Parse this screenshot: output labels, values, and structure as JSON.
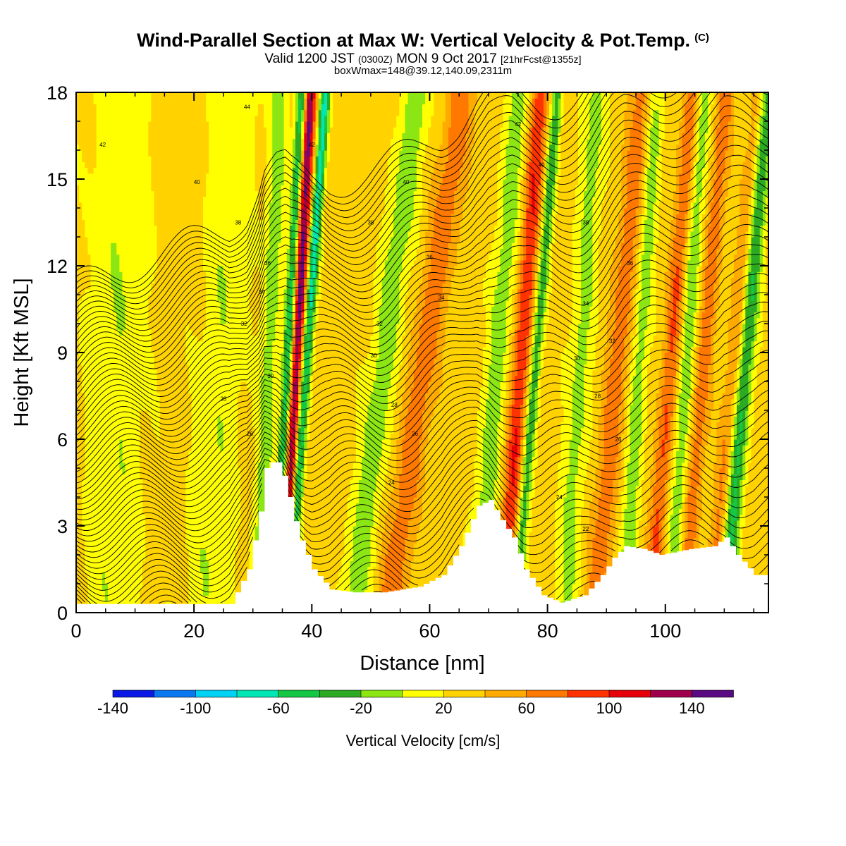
{
  "title": {
    "line1": "Wind-Parallel Section at Max W: Vertical Velocity & Pot.Temp.",
    "line1_tag": "(C)",
    "line2_a": "Valid 1200 JST",
    "line2_b": "(0300Z)",
    "line2_c": "MON 9 Oct 2017",
    "line2_d": "[21hrFcst@1355z]",
    "line3": "boxWmax=148@39.12,140.09,2311m"
  },
  "chart_data": {
    "type": "heatmap",
    "xlabel": "Distance [nm]",
    "ylabel": "Height [Kft MSL]",
    "xlim": [
      0,
      117.5
    ],
    "ylim": [
      0,
      18
    ],
    "x_ticks": [
      "0",
      "20",
      "40",
      "60",
      "80",
      "100"
    ],
    "y_ticks": [
      "0",
      "3",
      "6",
      "9",
      "12",
      "15",
      "18"
    ],
    "colorbar": {
      "label": "Vertical Velocity [cm/s]",
      "tick_labels": [
        "-140",
        "-100",
        "-60",
        "-20",
        "20",
        "60",
        "100",
        "140"
      ],
      "colors": [
        "#0a19e6",
        "#0a78f0",
        "#00d2f5",
        "#00e6b4",
        "#14c846",
        "#2daa23",
        "#8ce614",
        "#ffff00",
        "#ffd200",
        "#ffaa00",
        "#ff7800",
        "#ff3200",
        "#e6000a",
        "#a0004b",
        "#5a0a82"
      ]
    },
    "terrain_kft": [
      [
        0,
        0.3
      ],
      [
        26,
        0.3
      ],
      [
        29,
        1.5
      ],
      [
        31,
        3.5
      ],
      [
        32,
        5
      ],
      [
        33,
        5.2
      ],
      [
        34,
        5.2
      ],
      [
        35.5,
        4.5
      ],
      [
        36.5,
        3.5
      ],
      [
        38,
        2.5
      ],
      [
        40,
        1.5
      ],
      [
        43,
        0.8
      ],
      [
        47,
        0.7
      ],
      [
        52,
        0.7
      ],
      [
        58,
        0.9
      ],
      [
        62,
        1.3
      ],
      [
        65,
        2.3
      ],
      [
        68,
        3.7
      ],
      [
        70,
        3.9
      ],
      [
        72,
        3.2
      ],
      [
        74,
        2.6
      ],
      [
        76,
        1.5
      ],
      [
        79,
        0.6
      ],
      [
        82,
        0.35
      ],
      [
        86,
        0.6
      ],
      [
        89,
        1.3
      ],
      [
        91,
        1.9
      ],
      [
        93,
        2.3
      ],
      [
        96,
        2.2
      ],
      [
        99,
        2
      ],
      [
        104,
        2.2
      ],
      [
        108,
        2.3
      ],
      [
        110,
        2.6
      ],
      [
        112,
        2
      ],
      [
        115,
        1.3
      ],
      [
        117.5,
        1.3
      ]
    ],
    "updraft_bands": [
      {
        "x_base": 35,
        "slope": 0.25,
        "w": 148,
        "width": 1.2
      },
      {
        "x_base": 53,
        "slope": 0.7,
        "w": 45,
        "width": 2.5
      },
      {
        "x_base": 72.5,
        "slope": 0.35,
        "w": 70,
        "width": 1.6
      },
      {
        "x_base": 88,
        "slope": 0.45,
        "w": 45,
        "width": 2.0
      },
      {
        "x_base": 97.5,
        "slope": 0.4,
        "w": 55,
        "width": 1.5
      },
      {
        "x_base": 103,
        "slope": 0.4,
        "w": 45,
        "width": 1.5
      },
      {
        "x_base": 108,
        "slope": 0.45,
        "w": 45,
        "width": 1.5
      }
    ],
    "downdraft_bands": [
      {
        "x_base": 34,
        "slope": 0.25,
        "w": -130,
        "width": 1.0
      },
      {
        "x_base": 36,
        "slope": 0.35,
        "w": -100,
        "width": 0.9
      },
      {
        "x_base": 31,
        "slope": 0.2,
        "w": -40,
        "width": 1.5
      },
      {
        "x_base": 47,
        "slope": 0.6,
        "w": -40,
        "width": 2.5
      },
      {
        "x_base": 68,
        "slope": 0.4,
        "w": -40,
        "width": 2.0
      },
      {
        "x_base": 74.5,
        "slope": 0.4,
        "w": -65,
        "width": 1.0
      },
      {
        "x_base": 83,
        "slope": 0.3,
        "w": -35,
        "width": 2.0
      },
      {
        "x_base": 93,
        "slope": 0.3,
        "w": -40,
        "width": 1.5
      },
      {
        "x_base": 101,
        "slope": 0.3,
        "w": -45,
        "width": 1.5
      },
      {
        "x_base": 110,
        "slope": 0.4,
        "w": -80,
        "width": 1.5
      },
      {
        "x_base": 22,
        "slope": 0.3,
        "w": -25,
        "width": 4.0
      },
      {
        "x_base": 6,
        "slope": 0.1,
        "w": -25,
        "width": 5.0
      }
    ],
    "isentrope_labels": [
      {
        "text": "44",
        "x": 29,
        "y": 17.5
      },
      {
        "text": "42",
        "x": 4.5,
        "y": 16.2
      },
      {
        "text": "40",
        "x": 20.5,
        "y": 14.9
      },
      {
        "text": "38",
        "x": 27.5,
        "y": 13.5
      },
      {
        "text": "36",
        "x": 32.5,
        "y": 12.1
      },
      {
        "text": "34",
        "x": 31.5,
        "y": 11.1
      },
      {
        "text": "32",
        "x": 28.5,
        "y": 10.0
      },
      {
        "text": "30",
        "x": 33,
        "y": 8.2
      },
      {
        "text": "28",
        "x": 25,
        "y": 7.4
      },
      {
        "text": "26",
        "x": 29.5,
        "y": 6.2
      },
      {
        "text": "42",
        "x": 40,
        "y": 16.2
      },
      {
        "text": "40",
        "x": 56,
        "y": 14.9
      },
      {
        "text": "38",
        "x": 50,
        "y": 13.5
      },
      {
        "text": "36",
        "x": 60,
        "y": 12.3
      },
      {
        "text": "34",
        "x": 62,
        "y": 10.9
      },
      {
        "text": "32",
        "x": 51.5,
        "y": 10.0
      },
      {
        "text": "30",
        "x": 50.5,
        "y": 8.9
      },
      {
        "text": "28",
        "x": 54,
        "y": 7.2
      },
      {
        "text": "26",
        "x": 57.5,
        "y": 6.2
      },
      {
        "text": "24",
        "x": 53.5,
        "y": 4.5
      },
      {
        "text": "42",
        "x": 75,
        "y": 16.9
      },
      {
        "text": "40",
        "x": 79,
        "y": 15.5
      },
      {
        "text": "38",
        "x": 86.5,
        "y": 13.5
      },
      {
        "text": "36",
        "x": 94,
        "y": 12.1
      },
      {
        "text": "34",
        "x": 86.5,
        "y": 10.7
      },
      {
        "text": "32",
        "x": 91,
        "y": 9.4
      },
      {
        "text": "30",
        "x": 85,
        "y": 8.8
      },
      {
        "text": "28",
        "x": 88.5,
        "y": 7.5
      },
      {
        "text": "26",
        "x": 92,
        "y": 6.0
      },
      {
        "text": "24",
        "x": 82,
        "y": 4.0
      },
      {
        "text": "22",
        "x": 86.5,
        "y": 2.9
      }
    ]
  }
}
